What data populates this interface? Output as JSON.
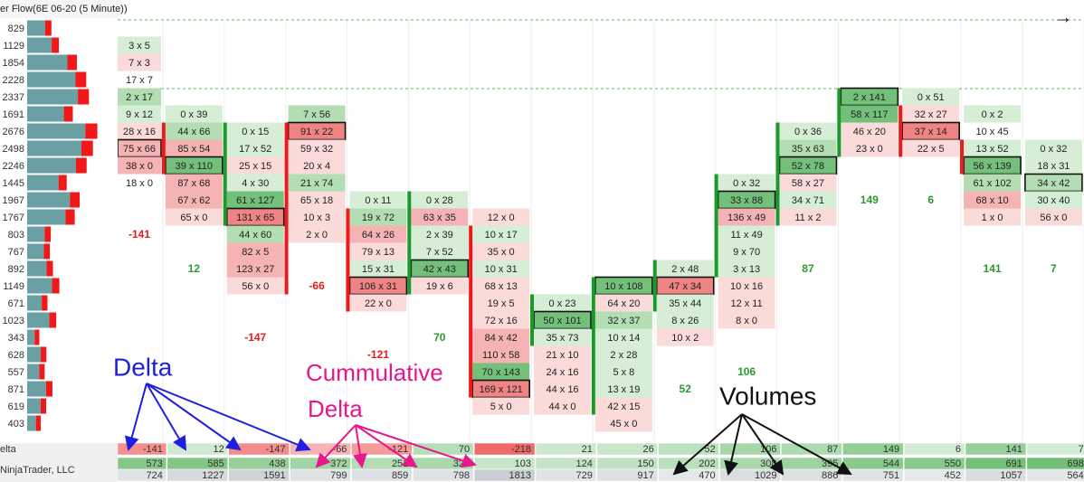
{
  "header": {
    "title": "er Flow(6E 06-20 (5 Minute))"
  },
  "shades": {
    "w": "#ffffff",
    "g1": "#d6eed6",
    "g2": "#b3deb3",
    "g3": "#73c07a",
    "r1": "#fbdada",
    "r2": "#f5b3b3",
    "r3": "#ee8484"
  },
  "profile": {
    "volumes": [
      829,
      1129,
      1854,
      2228,
      2337,
      1691,
      2676,
      2498,
      2246,
      1445,
      1967,
      1767,
      803,
      767,
      892,
      1149,
      671,
      1023,
      343,
      628,
      557,
      871,
      619,
      403
    ],
    "color": "#6a9fa4",
    "accent": "#f01818"
  },
  "columns": [
    {
      "cells": [
        null,
        {
          "t": "3 x 5",
          "s": "g1"
        },
        {
          "t": "7 x 3",
          "s": "r1"
        },
        {
          "t": "17 x 7",
          "s": "w"
        },
        {
          "t": "2 x 17",
          "s": "g2"
        },
        {
          "t": "9 x 12",
          "s": "g1"
        },
        {
          "t": "28 x 16",
          "s": "r1"
        },
        {
          "t": "75 x 66",
          "s": "r2",
          "box": true
        },
        {
          "t": "38 x 0",
          "s": "r2"
        },
        {
          "t": "18 x 0",
          "s": "w"
        }
      ]
    },
    {
      "cells": [
        null,
        null,
        null,
        null,
        null,
        {
          "t": "0 x 39",
          "s": "g1"
        },
        {
          "t": "44 x 66",
          "s": "g2"
        },
        {
          "t": "85 x 54",
          "s": "r2"
        },
        {
          "t": "39 x 110",
          "s": "g3",
          "box": true
        },
        {
          "t": "87 x 68",
          "s": "r2"
        },
        {
          "t": "67 x 62",
          "s": "r2"
        },
        {
          "t": "65 x 0",
          "s": "r1"
        }
      ]
    },
    {
      "cells": [
        null,
        null,
        null,
        null,
        null,
        null,
        {
          "t": "0 x 15",
          "s": "g1"
        },
        {
          "t": "17 x 52",
          "s": "g1"
        },
        {
          "t": "25 x 15",
          "s": "r1"
        },
        {
          "t": "4 x 30",
          "s": "g1"
        },
        {
          "t": "61 x 127",
          "s": "g3"
        },
        {
          "t": "131 x 65",
          "s": "r3",
          "box": true
        },
        {
          "t": "44 x 60",
          "s": "g2"
        },
        {
          "t": "82 x 5",
          "s": "r2"
        },
        {
          "t": "123 x 27",
          "s": "r2"
        },
        {
          "t": "56 x 0",
          "s": "r1"
        }
      ]
    },
    {
      "cells": [
        null,
        null,
        null,
        null,
        null,
        {
          "t": "7 x 56",
          "s": "g2"
        },
        {
          "t": "91 x 22",
          "s": "r3",
          "box": true
        },
        {
          "t": "59 x 32",
          "s": "r1"
        },
        {
          "t": "20 x 4",
          "s": "r1"
        },
        {
          "t": "21 x 74",
          "s": "g2"
        },
        {
          "t": "65 x 18",
          "s": "r1"
        },
        {
          "t": "10 x 3",
          "s": "r1"
        },
        {
          "t": "2 x 0",
          "s": "r1"
        }
      ]
    },
    {
      "cells": [
        null,
        null,
        null,
        null,
        null,
        null,
        null,
        null,
        null,
        null,
        {
          "t": "0 x 11",
          "s": "g1"
        },
        {
          "t": "19 x 72",
          "s": "g2"
        },
        {
          "t": "64 x 26",
          "s": "r2"
        },
        {
          "t": "79 x 13",
          "s": "r1"
        },
        {
          "t": "15 x 31",
          "s": "g1"
        },
        {
          "t": "106 x 31",
          "s": "r3",
          "box": true
        },
        {
          "t": "22 x 0",
          "s": "r1"
        }
      ]
    },
    {
      "cells": [
        null,
        null,
        null,
        null,
        null,
        null,
        null,
        null,
        null,
        null,
        {
          "t": "0 x 28",
          "s": "g1"
        },
        {
          "t": "63 x 35",
          "s": "r2"
        },
        {
          "t": "2 x 39",
          "s": "g1"
        },
        {
          "t": "7 x 52",
          "s": "g1"
        },
        {
          "t": "42 x 43",
          "s": "g3",
          "box": true
        },
        {
          "t": "19 x 6",
          "s": "r1"
        }
      ]
    },
    {
      "cells": [
        null,
        null,
        null,
        null,
        null,
        null,
        null,
        null,
        null,
        null,
        null,
        {
          "t": "12 x 0",
          "s": "r1"
        },
        {
          "t": "10 x 17",
          "s": "g1"
        },
        {
          "t": "35 x 0",
          "s": "r1"
        },
        {
          "t": "10 x 31",
          "s": "g1"
        },
        {
          "t": "68 x 13",
          "s": "r1"
        },
        {
          "t": "19 x 5",
          "s": "r1"
        },
        {
          "t": "72 x 16",
          "s": "r1"
        },
        {
          "t": "84 x 42",
          "s": "r2"
        },
        {
          "t": "110 x 58",
          "s": "r2"
        },
        {
          "t": "70 x 143",
          "s": "g3"
        },
        {
          "t": "169 x 121",
          "s": "r3",
          "box": true
        },
        {
          "t": "5 x 0",
          "s": "r1"
        }
      ]
    },
    {
      "cells": [
        null,
        null,
        null,
        null,
        null,
        null,
        null,
        null,
        null,
        null,
        null,
        null,
        null,
        null,
        null,
        null,
        {
          "t": "0 x 23",
          "s": "g1"
        },
        {
          "t": "50 x 101",
          "s": "g3",
          "box": true
        },
        {
          "t": "35 x 73",
          "s": "g1"
        },
        {
          "t": "21 x 10",
          "s": "r1"
        },
        {
          "t": "24 x 16",
          "s": "r1"
        },
        {
          "t": "44 x 16",
          "s": "r1"
        },
        {
          "t": "44 x 0",
          "s": "r1"
        }
      ]
    },
    {
      "cells": [
        null,
        null,
        null,
        null,
        null,
        null,
        null,
        null,
        null,
        null,
        null,
        null,
        null,
        null,
        null,
        {
          "t": "10 x 108",
          "s": "g3",
          "box": true
        },
        {
          "t": "64 x 20",
          "s": "r1"
        },
        {
          "t": "32 x 37",
          "s": "g2"
        },
        {
          "t": "10 x 14",
          "s": "g1"
        },
        {
          "t": "2 x 28",
          "s": "g1"
        },
        {
          "t": "5 x 8",
          "s": "g1"
        },
        {
          "t": "13 x 19",
          "s": "g1"
        },
        {
          "t": "42 x 15",
          "s": "r1"
        },
        {
          "t": "45 x 0",
          "s": "r1"
        }
      ]
    },
    {
      "cells": [
        null,
        null,
        null,
        null,
        null,
        null,
        null,
        null,
        null,
        null,
        null,
        null,
        null,
        null,
        {
          "t": "2 x 48",
          "s": "g1"
        },
        {
          "t": "47 x 34",
          "s": "r3",
          "box": true
        },
        {
          "t": "35 x 44",
          "s": "g1"
        },
        {
          "t": "8 x 26",
          "s": "g1"
        },
        {
          "t": "10 x 2",
          "s": "r1"
        }
      ]
    },
    {
      "cells": [
        null,
        null,
        null,
        null,
        null,
        null,
        null,
        null,
        null,
        {
          "t": "0 x 32",
          "s": "g1"
        },
        {
          "t": "33 x 88",
          "s": "g3",
          "box": true
        },
        {
          "t": "136 x 49",
          "s": "r2"
        },
        {
          "t": "11 x 49",
          "s": "g1"
        },
        {
          "t": "9 x 70",
          "s": "g1"
        },
        {
          "t": "3 x 13",
          "s": "g1"
        },
        {
          "t": "10 x 16",
          "s": "r1"
        },
        {
          "t": "12 x 11",
          "s": "r1"
        },
        {
          "t": "8 x 0",
          "s": "r1"
        }
      ]
    },
    {
      "cells": [
        null,
        null,
        null,
        null,
        null,
        null,
        {
          "t": "0 x 36",
          "s": "g1"
        },
        {
          "t": "35 x 63",
          "s": "g2"
        },
        {
          "t": "52 x 78",
          "s": "g3",
          "box": true
        },
        {
          "t": "58 x 27",
          "s": "r1"
        },
        {
          "t": "34 x 71",
          "s": "g1"
        },
        {
          "t": "11 x 2",
          "s": "r1"
        }
      ]
    },
    {
      "cells": [
        null,
        null,
        null,
        null,
        {
          "t": "2 x 141",
          "s": "g3",
          "box": true
        },
        {
          "t": "58 x 117",
          "s": "g3"
        },
        {
          "t": "46 x 20",
          "s": "r1"
        },
        {
          "t": "23 x 0",
          "s": "r1"
        }
      ]
    },
    {
      "cells": [
        null,
        null,
        null,
        null,
        {
          "t": "0 x 51",
          "s": "g1"
        },
        {
          "t": "32 x 27",
          "s": "r1"
        },
        {
          "t": "37 x 14",
          "s": "r3",
          "box": true
        },
        {
          "t": "22 x 5",
          "s": "r1"
        }
      ]
    },
    {
      "cells": [
        null,
        null,
        null,
        null,
        null,
        {
          "t": "0 x 2",
          "s": "g1"
        },
        {
          "t": "10 x 45",
          "s": "w"
        },
        {
          "t": "13 x 52",
          "s": "g1"
        },
        {
          "t": "56 x 139",
          "s": "g3",
          "box": true
        },
        {
          "t": "61 x 102",
          "s": "g2"
        },
        {
          "t": "68 x 10",
          "s": "r2"
        },
        {
          "t": "1 x 0",
          "s": "r1"
        }
      ]
    },
    {
      "cells": [
        null,
        null,
        null,
        null,
        null,
        null,
        null,
        {
          "t": "0 x 32",
          "s": "g1"
        },
        {
          "t": "18 x 31",
          "s": "g1"
        },
        {
          "t": "34 x 42",
          "s": "g2",
          "box": true
        },
        {
          "t": "30 x 40",
          "s": "g1"
        },
        {
          "t": "56 x 0",
          "s": "r1"
        }
      ]
    }
  ],
  "summary": {
    "labels": [
      "elta",
      "NinjaTrader, LLC"
    ],
    "delta": [
      -141,
      12,
      -147,
      -66,
      -121,
      70,
      -218,
      21,
      26,
      52,
      106,
      87,
      149,
      6,
      141,
      7
    ],
    "cumulative": [
      573,
      585,
      438,
      372,
      251,
      321,
      103,
      124,
      150,
      202,
      308,
      395,
      544,
      550,
      691,
      698
    ],
    "volume": [
      724,
      1227,
      1591,
      799,
      859,
      798,
      1813,
      729,
      917,
      470,
      1029,
      886,
      751,
      452,
      1057,
      564
    ]
  },
  "annotations": {
    "delta": "Delta",
    "cumulative": [
      "Cummulative",
      "Delta"
    ],
    "volumes": "Volumes"
  }
}
